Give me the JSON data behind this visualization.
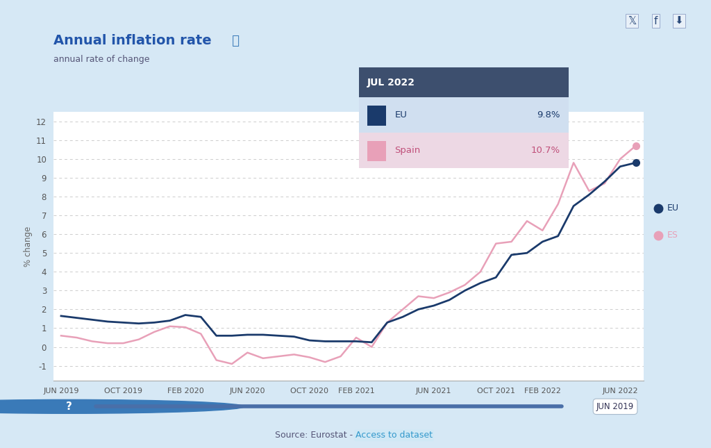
{
  "title": "Annual inflation rate",
  "subtitle": "annual rate of change",
  "ylabel": "% change",
  "background_color": "#d6e8f5",
  "plot_bg_color": "#ffffff",
  "eu_color": "#1a3a6b",
  "es_color": "#e8a0b8",
  "source_text": "Source: Eurostat - ",
  "source_link": "Access to dataset",
  "tooltip_header": "JUL 2022",
  "tooltip_eu_val": "9.8%",
  "tooltip_es_val": "10.7%",
  "ylim": [
    -1.8,
    12.5
  ],
  "yticks": [
    -1,
    0,
    1,
    2,
    3,
    4,
    5,
    6,
    7,
    8,
    9,
    10,
    11,
    12
  ],
  "eu_values": [
    1.65,
    1.55,
    1.45,
    1.35,
    1.3,
    1.25,
    1.3,
    1.4,
    1.7,
    1.6,
    0.6,
    0.6,
    0.65,
    0.65,
    0.6,
    0.55,
    0.35,
    0.3,
    0.3,
    0.3,
    0.25,
    1.3,
    1.6,
    2.0,
    2.2,
    2.5,
    3.0,
    3.4,
    3.7,
    4.9,
    5.0,
    5.6,
    5.9,
    7.5,
    8.1,
    8.8,
    9.6,
    9.8
  ],
  "es_values": [
    0.6,
    0.5,
    0.3,
    0.2,
    0.2,
    0.4,
    0.8,
    1.1,
    1.05,
    0.7,
    -0.7,
    -0.9,
    -0.3,
    -0.6,
    -0.5,
    -0.4,
    -0.55,
    -0.8,
    -0.5,
    0.5,
    0.0,
    1.3,
    2.0,
    2.7,
    2.6,
    2.9,
    3.3,
    4.0,
    5.5,
    5.6,
    6.7,
    6.2,
    7.6,
    9.8,
    8.3,
    8.7,
    10.0,
    10.7
  ],
  "xtick_labels": [
    "JUN 2019",
    "OCT 2019",
    "FEB 2020",
    "JUN 2020",
    "OCT 2020",
    "FEB 2021",
    "JUN 2021",
    "OCT 2021",
    "FEB 2022",
    "JUN 2022"
  ],
  "xtick_positions": [
    0,
    4,
    8,
    12,
    16,
    19,
    24,
    28,
    31,
    36
  ]
}
